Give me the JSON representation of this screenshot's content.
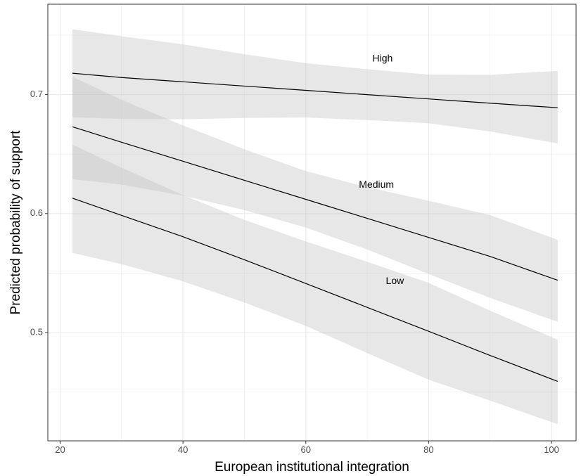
{
  "chart_data": {
    "type": "line",
    "title": "",
    "xlabel": "European institutional integration",
    "ylabel": "Predicted probability of support",
    "xlim": [
      18,
      104
    ],
    "ylim": [
      0.409,
      0.776
    ],
    "x_ticks": [
      20,
      40,
      60,
      80,
      100
    ],
    "x_tick_labels": [
      "20",
      "40",
      "60",
      "80",
      "100"
    ],
    "y_ticks": [
      0.5,
      0.6,
      0.7
    ],
    "y_tick_labels": [
      "0.5",
      "0.6",
      "0.7"
    ],
    "grid": true,
    "legend": "none (series labelled directly on plot)",
    "colors": {
      "line": "#000000",
      "band": "#bfbfbf",
      "grid": "#ebebeb",
      "axis": "#333333",
      "background": "#ffffff"
    },
    "series": [
      {
        "name": "High",
        "label_position": {
          "x": 72.5,
          "y": 0.73
        },
        "x": [
          22,
          30,
          40,
          50,
          60,
          70,
          80,
          90,
          101
        ],
        "y": [
          0.718,
          0.7144,
          0.7108,
          0.7072,
          0.7036,
          0.7,
          0.6964,
          0.6928,
          0.689
        ],
        "lower": [
          0.681,
          0.6797,
          0.6793,
          0.6804,
          0.6808,
          0.6786,
          0.676,
          0.669,
          0.659
        ],
        "upper": [
          0.755,
          0.7491,
          0.7423,
          0.734,
          0.7264,
          0.7214,
          0.7168,
          0.7166,
          0.72
        ]
      },
      {
        "name": "Medium",
        "label_position": {
          "x": 71.5,
          "y": 0.624
        },
        "x": [
          22,
          30,
          40,
          50,
          60,
          70,
          80,
          90,
          101
        ],
        "y": [
          0.673,
          0.66,
          0.644,
          0.628,
          0.612,
          0.596,
          0.58,
          0.564,
          0.544
        ],
        "lower": [
          0.629,
          0.6244,
          0.6151,
          0.603,
          0.5883,
          0.5698,
          0.5492,
          0.5292,
          0.509
        ],
        "upper": [
          0.715,
          0.6957,
          0.6741,
          0.6541,
          0.6357,
          0.6222,
          0.6108,
          0.5988,
          0.578
        ]
      },
      {
        "name": "Low",
        "label_position": {
          "x": 74.5,
          "y": 0.543
        },
        "x": [
          22,
          30,
          40,
          50,
          60,
          70,
          80,
          90,
          101
        ],
        "y": [
          0.613,
          0.5985,
          0.5806,
          0.5612,
          0.5413,
          0.5212,
          0.5011,
          0.4808,
          0.459
        ],
        "lower": [
          0.567,
          0.5575,
          0.5431,
          0.5253,
          0.5056,
          0.4828,
          0.4604,
          0.4428,
          0.423
        ],
        "upper": [
          0.658,
          0.6386,
          0.6156,
          0.5947,
          0.5766,
          0.5595,
          0.5418,
          0.5184,
          0.494
        ]
      }
    ]
  }
}
